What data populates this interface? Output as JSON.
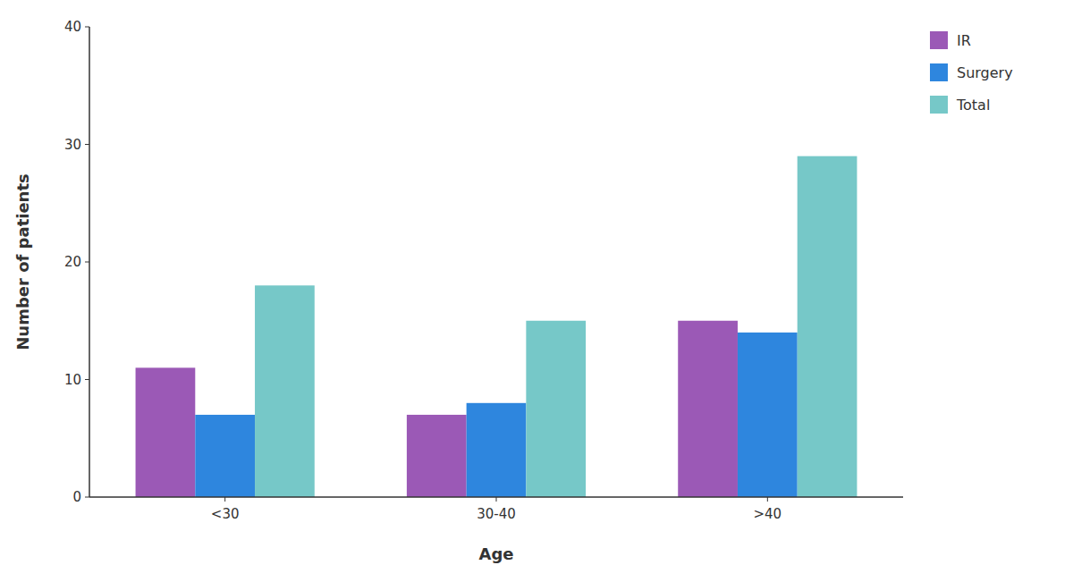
{
  "chart_data": {
    "type": "bar",
    "categories": [
      "<30",
      "30-40",
      ">40"
    ],
    "series": [
      {
        "name": "IR",
        "color": "#9B59B6",
        "values": [
          11,
          7,
          15
        ]
      },
      {
        "name": "Surgery",
        "color": "#2E86DE",
        "values": [
          7,
          8,
          14
        ]
      },
      {
        "name": "Total",
        "color": "#76C8C8",
        "values": [
          18,
          15,
          29
        ]
      }
    ],
    "xlabel": "Age",
    "ylabel": "Number of patients",
    "ylim": [
      0,
      40
    ],
    "yticks": [
      0,
      10,
      20,
      30,
      40
    ],
    "legend": "upper right",
    "grid": false
  }
}
